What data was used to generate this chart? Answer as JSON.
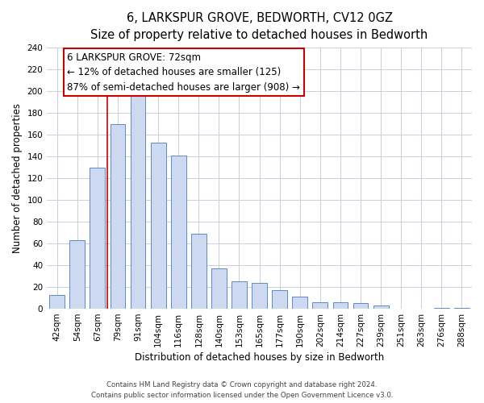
{
  "title": "6, LARKSPUR GROVE, BEDWORTH, CV12 0GZ",
  "subtitle": "Size of property relative to detached houses in Bedworth",
  "xlabel": "Distribution of detached houses by size in Bedworth",
  "ylabel": "Number of detached properties",
  "bar_labels": [
    "42sqm",
    "54sqm",
    "67sqm",
    "79sqm",
    "91sqm",
    "104sqm",
    "116sqm",
    "128sqm",
    "140sqm",
    "153sqm",
    "165sqm",
    "177sqm",
    "190sqm",
    "202sqm",
    "214sqm",
    "227sqm",
    "239sqm",
    "251sqm",
    "263sqm",
    "276sqm",
    "288sqm"
  ],
  "bar_values": [
    13,
    63,
    130,
    170,
    198,
    153,
    141,
    69,
    37,
    25,
    24,
    17,
    11,
    6,
    6,
    5,
    3,
    0,
    0,
    1,
    1
  ],
  "bar_color": "#ccd9f0",
  "bar_edge_color": "#5b8cc8",
  "bar_width": 0.75,
  "ylim": [
    0,
    240
  ],
  "yticks": [
    0,
    20,
    40,
    60,
    80,
    100,
    120,
    140,
    160,
    180,
    200,
    220,
    240
  ],
  "red_line_after_index": 2,
  "marker_label": "6 LARKSPUR GROVE: 72sqm",
  "annotation_line1": "← 12% of detached houses are smaller (125)",
  "annotation_line2": "87% of semi-detached houses are larger (908) →",
  "annotation_box_color": "#ffffff",
  "annotation_box_edge_color": "#cc0000",
  "footer_line1": "Contains HM Land Registry data © Crown copyright and database right 2024.",
  "footer_line2": "Contains public sector information licensed under the Open Government Licence v3.0.",
  "background_color": "#ffffff",
  "grid_color": "#c8d0dc",
  "title_fontsize": 10.5,
  "subtitle_fontsize": 9.5,
  "axis_label_fontsize": 8.5,
  "tick_fontsize": 7.5,
  "annotation_fontsize": 8.5
}
